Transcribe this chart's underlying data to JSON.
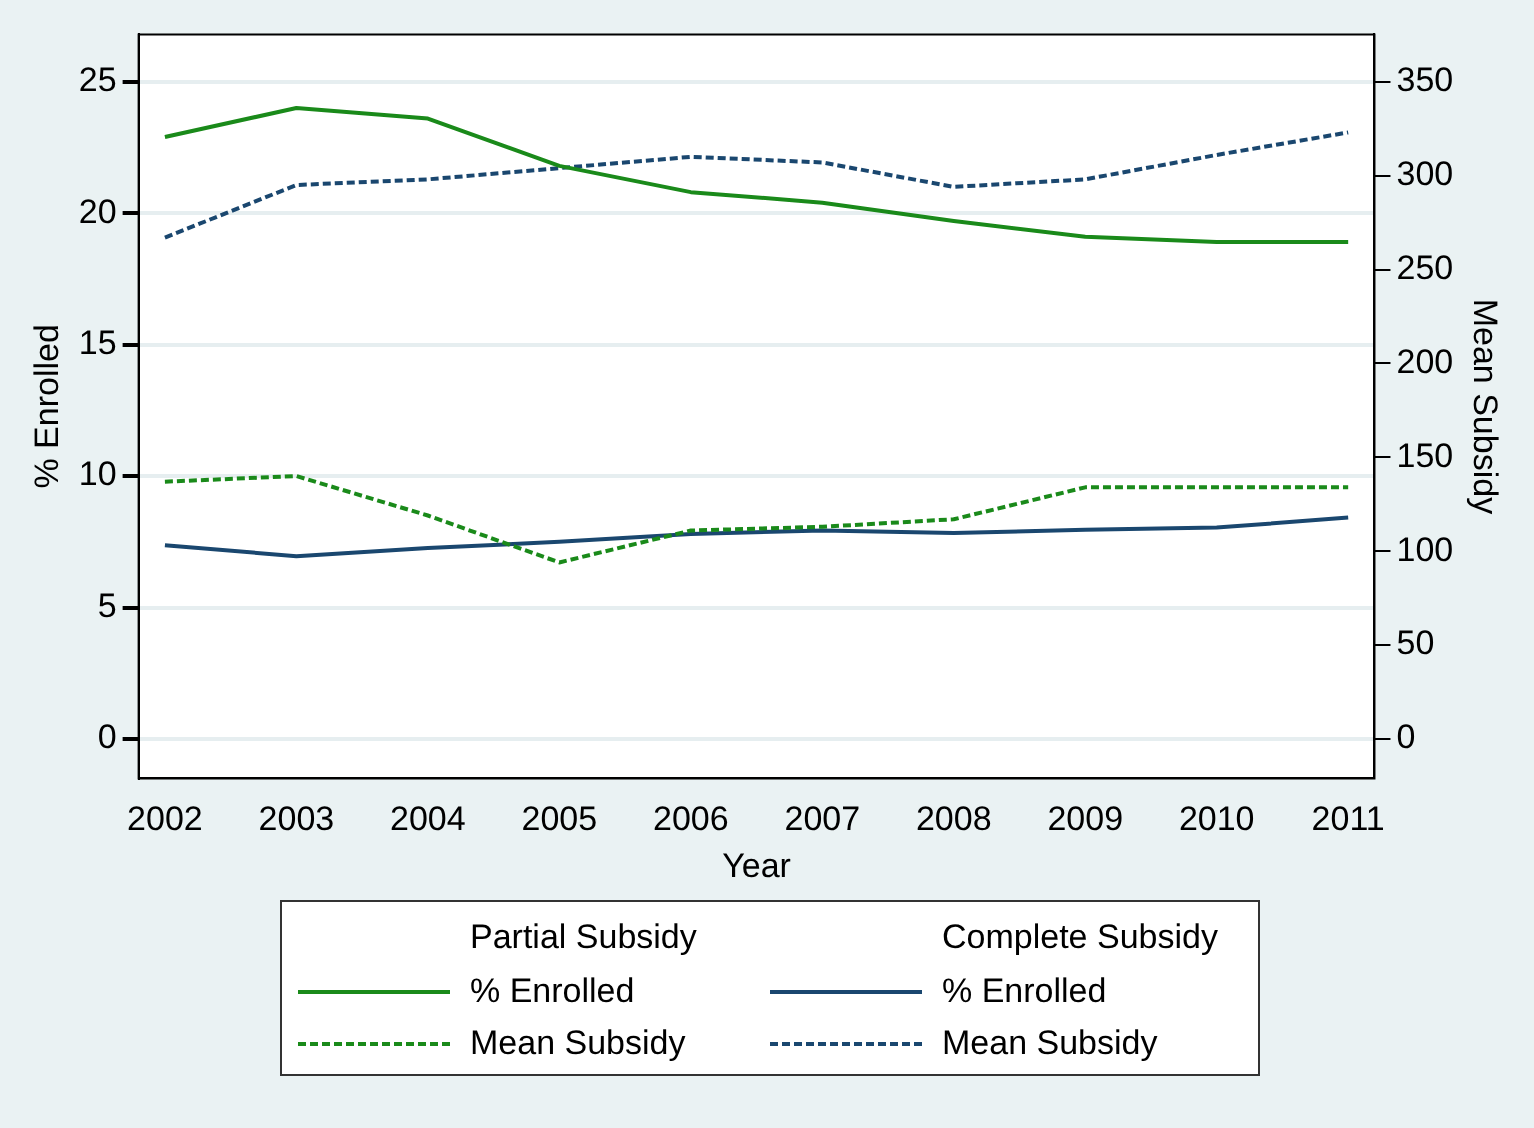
{
  "chart_data": {
    "type": "line",
    "xlabel": "Year",
    "ylabel": "% Enrolled",
    "y2label": "Mean Subsidy",
    "x": [
      2002,
      2003,
      2004,
      2005,
      2006,
      2007,
      2008,
      2009,
      2010,
      2011
    ],
    "xlim": [
      2001.8,
      2011.2
    ],
    "xticks": [
      2002,
      2003,
      2004,
      2005,
      2006,
      2007,
      2008,
      2009,
      2010,
      2011
    ],
    "ylim": [
      -1.5,
      26.8
    ],
    "yticks": [
      0,
      5,
      10,
      15,
      20,
      25
    ],
    "y2lim": [
      -21,
      375.2
    ],
    "y2ticks": [
      0,
      50,
      100,
      150,
      200,
      250,
      300,
      350
    ],
    "grid": "y",
    "legend": "bottom",
    "marker": "none",
    "annotations": [
      "Partial Subsidy",
      "Complete Subsidy"
    ],
    "series": [
      {
        "name": "% Enrolled",
        "color": "#1a8a1a",
        "line_style": "solid",
        "values": [
          22.9,
          24.0,
          23.6,
          21.8,
          20.8,
          20.4,
          19.7,
          19.1,
          18.9,
          18.9
        ]
      },
      {
        "name": "Mean Subsidy",
        "color": "#1a8a1a",
        "line_style": "dashed",
        "axis": "y2",
        "values": [
          137,
          140,
          119,
          94,
          111,
          113,
          117,
          134,
          134,
          134
        ]
      },
      {
        "name": "% Enrolled",
        "color": "#1a476f",
        "line_style": "solid",
        "values": [
          7.37,
          6.95,
          7.26,
          7.5,
          7.8,
          7.93,
          7.83,
          7.96,
          8.04,
          8.42
        ]
      },
      {
        "name": "Mean Subsidy",
        "color": "#1a476f",
        "line_style": "dashed",
        "axis": "y2",
        "values": [
          267,
          295,
          298,
          304,
          310,
          307,
          294,
          298,
          311,
          323
        ]
      }
    ]
  }
}
